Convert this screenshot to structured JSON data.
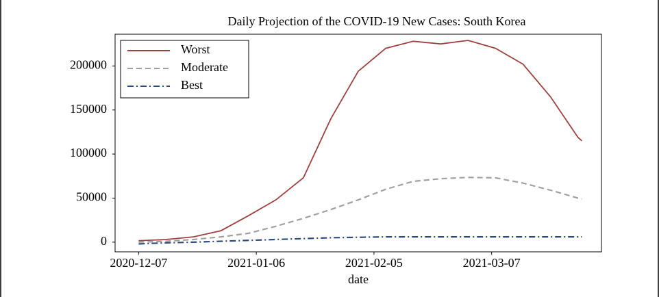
{
  "chart_data": {
    "type": "line",
    "title": "Daily Projection of the COVID-19 New Cases: South Korea",
    "x_label": "date",
    "x": [
      "2020-12-07",
      "2020-12-14",
      "2020-12-21",
      "2020-12-28",
      "2021-01-04",
      "2021-01-11",
      "2021-01-18",
      "2021-01-25",
      "2021-02-01",
      "2021-02-08",
      "2021-02-15",
      "2021-02-22",
      "2021-03-01",
      "2021-03-08",
      "2021-03-15",
      "2021-03-22",
      "2021-03-29",
      "2021-03-30"
    ],
    "series": [
      {
        "name": "Worst",
        "color": "#a0403c",
        "dash": "solid",
        "values": [
          1600,
          3000,
          6000,
          13000,
          30000,
          48000,
          73000,
          140000,
          194000,
          220000,
          228000,
          225000,
          229000,
          220000,
          202000,
          165000,
          119000,
          115000
        ]
      },
      {
        "name": "Moderate",
        "color": "#a0a0a0",
        "dash": "dashed",
        "values": [
          0,
          1000,
          3000,
          6000,
          10000,
          18000,
          27000,
          37000,
          48000,
          60000,
          69000,
          72000,
          73500,
          73000,
          67000,
          59000,
          50000,
          49000
        ]
      },
      {
        "name": "Best",
        "color": "#2c4a7a",
        "dash": "dashdot",
        "values": [
          -2000,
          -800,
          0,
          1000,
          2000,
          3000,
          4000,
          5000,
          5500,
          6000,
          6000,
          6000,
          6000,
          6000,
          6000,
          6000,
          6000,
          6000
        ]
      }
    ],
    "xlim": [
      "2020-12-01",
      "2021-04-04"
    ],
    "xticks": [
      "2020-12-07",
      "2021-01-06",
      "2021-02-05",
      "2021-03-07"
    ],
    "ylim": [
      -11000,
      236000
    ],
    "yticks": [
      0,
      50000,
      100000,
      150000,
      200000
    ],
    "legend": "upper left"
  }
}
